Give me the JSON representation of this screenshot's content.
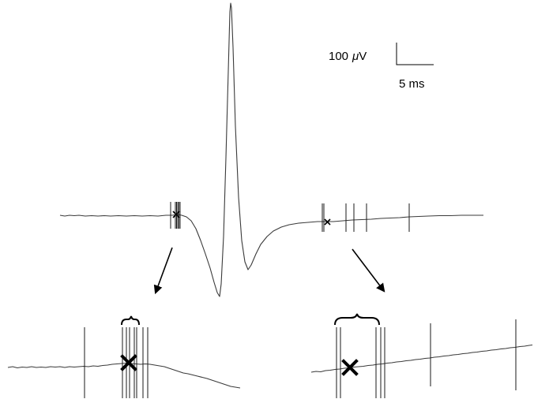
{
  "scale_bar": {
    "voltage_value": "100",
    "voltage_unit_symbol": "μ",
    "voltage_unit": "V",
    "time_label": "5 ms"
  },
  "colors": {
    "trace": "#3a3a3a",
    "annotation": "#000000"
  }
}
